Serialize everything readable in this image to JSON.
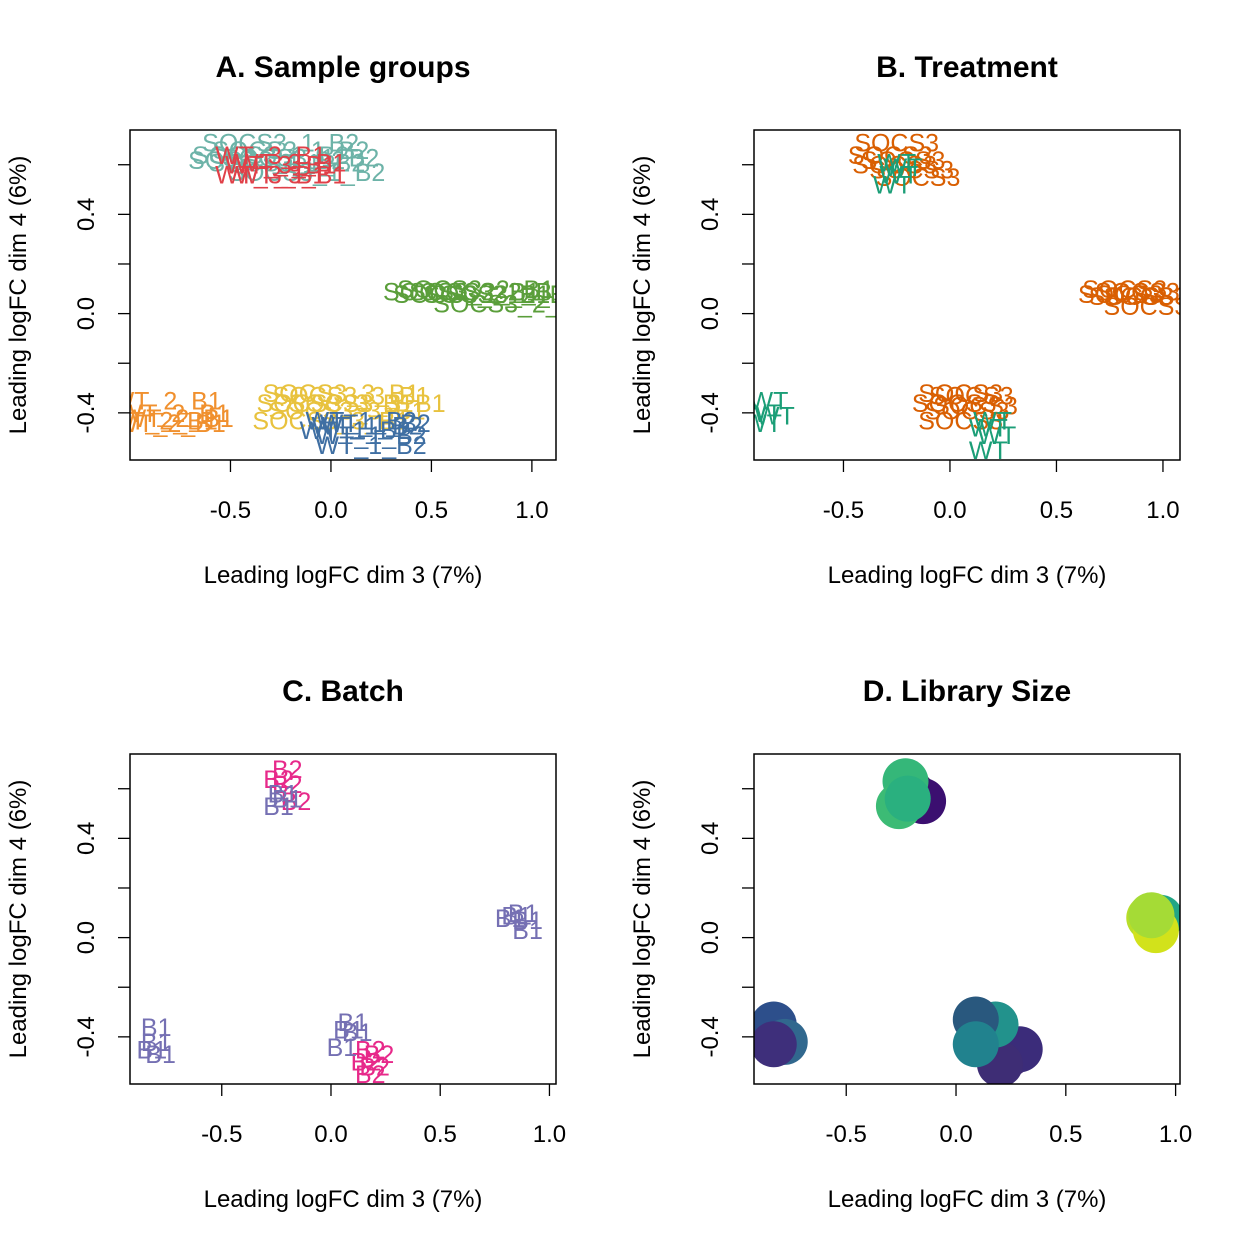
{
  "chart_data": [
    {
      "type": "scatter",
      "title": "A. Sample groups",
      "xlabel": "Leading logFC dim 3 (7%)",
      "ylabel": "Leading logFC dim 4 (6%)",
      "xlim": [
        -1.0,
        1.12
      ],
      "ylim": [
        -0.59,
        0.74
      ],
      "xticks": [
        "-0.5",
        "0.0",
        "0.5",
        "1.0"
      ],
      "yticks": [
        "-0.4",
        "0.0",
        "0.4"
      ],
      "xtick_values": [
        -0.5,
        0.0,
        0.5,
        1.0
      ],
      "ytick_values": [
        -0.4,
        0.0,
        0.4
      ],
      "yminor": [
        -0.2,
        0.2,
        0.6
      ],
      "marker": "text",
      "series": [
        {
          "color": "#6db3a8",
          "points": [
            {
              "x": -0.25,
              "y": 0.69,
              "label": "SOCS3_1_B2"
            },
            {
              "x": -0.3,
              "y": 0.64,
              "label": "SOCS3_1_B2"
            },
            {
              "x": -0.2,
              "y": 0.66,
              "label": "SOCS3_1_B2"
            },
            {
              "x": -0.32,
              "y": 0.62,
              "label": "SOCS3_1_B2"
            },
            {
              "x": -0.15,
              "y": 0.63,
              "label": "SOCS3_1_B2"
            },
            {
              "x": -0.22,
              "y": 0.61,
              "label": "SOCS3_1_B2"
            },
            {
              "x": -0.12,
              "y": 0.57,
              "label": "SOCS3_1_B2"
            }
          ]
        },
        {
          "color": "#e04048",
          "points": [
            {
              "x": -0.3,
              "y": 0.64,
              "label": "WT_3_B1"
            },
            {
              "x": -0.2,
              "y": 0.61,
              "label": "WT_3_B1"
            },
            {
              "x": -0.25,
              "y": 0.6,
              "label": "WT_3_B1"
            },
            {
              "x": -0.3,
              "y": 0.56,
              "label": "WT_3_B1"
            },
            {
              "x": -0.2,
              "y": 0.56,
              "label": "WT_3_B1"
            }
          ]
        },
        {
          "color": "#5a9e3a",
          "points": [
            {
              "x": 0.65,
              "y": 0.09,
              "label": "SOCS3_2_B1"
            },
            {
              "x": 0.72,
              "y": 0.1,
              "label": "SOCS3_2_B1"
            },
            {
              "x": 0.78,
              "y": 0.09,
              "label": "SOCS3_2_B1"
            },
            {
              "x": 0.7,
              "y": 0.08,
              "label": "SOCS3_2_B1"
            },
            {
              "x": 0.85,
              "y": 0.08,
              "label": "SOCS3_2_B1"
            },
            {
              "x": 0.9,
              "y": 0.04,
              "label": "SOCS3_2_B1"
            }
          ]
        },
        {
          "color": "#e8c23e",
          "points": [
            {
              "x": 0.05,
              "y": -0.32,
              "label": "SOCS3_3_B1"
            },
            {
              "x": 0.1,
              "y": -0.33,
              "label": "SOCS3_3_B1"
            },
            {
              "x": 0.02,
              "y": -0.36,
              "label": "SOCS3_3_B1"
            },
            {
              "x": 0.18,
              "y": -0.36,
              "label": "SOCS3_3_B1"
            },
            {
              "x": 0.08,
              "y": -0.39,
              "label": "SOCS3_3_B1"
            },
            {
              "x": 0.0,
              "y": -0.43,
              "label": "SOCS3_3_B1"
            }
          ]
        },
        {
          "color": "#f0902e",
          "points": [
            {
              "x": -0.82,
              "y": -0.35,
              "label": "WT_2_B1"
            },
            {
              "x": -0.78,
              "y": -0.4,
              "label": "WT_2_B1"
            },
            {
              "x": -0.84,
              "y": -0.43,
              "label": "WT_2_B1"
            },
            {
              "x": -0.76,
              "y": -0.42,
              "label": "WT_2_B1"
            },
            {
              "x": -0.8,
              "y": -0.44,
              "label": "WT_2_B1"
            }
          ]
        },
        {
          "color": "#3f6fa3",
          "points": [
            {
              "x": 0.15,
              "y": -0.43,
              "label": "WT_1_B2"
            },
            {
              "x": 0.22,
              "y": -0.44,
              "label": "WT_1_B2"
            },
            {
              "x": 0.18,
              "y": -0.45,
              "label": "WT_1_B2"
            },
            {
              "x": 0.2,
              "y": -0.49,
              "label": "WT_1_B2"
            },
            {
              "x": 0.12,
              "y": -0.47,
              "label": "WT_1_B2"
            },
            {
              "x": 0.2,
              "y": -0.53,
              "label": "WT_1_B2"
            }
          ]
        }
      ]
    },
    {
      "type": "scatter",
      "title": "B. Treatment",
      "xlabel": "Leading logFC dim 3 (7%)",
      "ylabel": "Leading logFC dim 4 (6%)",
      "xlim": [
        -0.92,
        1.08
      ],
      "ylim": [
        -0.59,
        0.74
      ],
      "xticks": [
        "-0.5",
        "0.0",
        "0.5",
        "1.0"
      ],
      "yticks": [
        "-0.4",
        "0.0",
        "0.4"
      ],
      "xtick_values": [
        -0.5,
        0.0,
        0.5,
        1.0
      ],
      "ytick_values": [
        -0.4,
        0.0,
        0.4
      ],
      "yminor": [
        -0.2,
        0.2,
        0.6
      ],
      "marker": "text",
      "series": [
        {
          "color": "#d95f02",
          "points": [
            {
              "x": -0.25,
              "y": 0.69,
              "label": "SOCS3"
            },
            {
              "x": -0.28,
              "y": 0.64,
              "label": "SOCS3"
            },
            {
              "x": -0.22,
              "y": 0.62,
              "label": "SOCS3"
            },
            {
              "x": -0.26,
              "y": 0.6,
              "label": "SOCS3"
            },
            {
              "x": -0.18,
              "y": 0.58,
              "label": "SOCS3"
            },
            {
              "x": -0.15,
              "y": 0.55,
              "label": "SOCS3"
            },
            {
              "x": 0.82,
              "y": 0.1,
              "label": "SOCS3"
            },
            {
              "x": 0.88,
              "y": 0.09,
              "label": "SOCS3"
            },
            {
              "x": 0.8,
              "y": 0.08,
              "label": "SOCS3"
            },
            {
              "x": 0.92,
              "y": 0.07,
              "label": "SOCS3"
            },
            {
              "x": 0.85,
              "y": 0.07,
              "label": "SOCS3"
            },
            {
              "x": 0.92,
              "y": 0.03,
              "label": "SOCS3"
            },
            {
              "x": 0.05,
              "y": -0.32,
              "label": "SOCS3"
            },
            {
              "x": 0.1,
              "y": -0.33,
              "label": "SOCS3"
            },
            {
              "x": 0.02,
              "y": -0.36,
              "label": "SOCS3"
            },
            {
              "x": 0.12,
              "y": -0.37,
              "label": "SOCS3"
            },
            {
              "x": 0.08,
              "y": -0.39,
              "label": "SOCS3"
            },
            {
              "x": 0.05,
              "y": -0.43,
              "label": "SOCS3"
            }
          ]
        },
        {
          "color": "#1b9e77",
          "points": [
            {
              "x": -0.25,
              "y": 0.61,
              "label": "WT"
            },
            {
              "x": -0.22,
              "y": 0.59,
              "label": "WT"
            },
            {
              "x": -0.24,
              "y": 0.56,
              "label": "WT"
            },
            {
              "x": -0.27,
              "y": 0.52,
              "label": "WT"
            },
            {
              "x": -0.85,
              "y": -0.35,
              "label": "WT"
            },
            {
              "x": -0.88,
              "y": -0.4,
              "label": "WT"
            },
            {
              "x": -0.82,
              "y": -0.41,
              "label": "WT"
            },
            {
              "x": -0.88,
              "y": -0.44,
              "label": "WT"
            },
            {
              "x": 0.2,
              "y": -0.43,
              "label": "WT"
            },
            {
              "x": 0.18,
              "y": -0.46,
              "label": "WT"
            },
            {
              "x": 0.22,
              "y": -0.49,
              "label": "WT"
            },
            {
              "x": 0.18,
              "y": -0.55,
              "label": "WT"
            }
          ]
        }
      ]
    },
    {
      "type": "scatter",
      "title": "C. Batch",
      "xlabel": "Leading logFC dim 3 (7%)",
      "ylabel": "Leading logFC dim 4 (6%)",
      "xlim": [
        -0.92,
        1.03
      ],
      "ylim": [
        -0.59,
        0.74
      ],
      "xticks": [
        "-0.5",
        "0.0",
        "0.5",
        "1.0"
      ],
      "yticks": [
        "-0.4",
        "0.0",
        "0.4"
      ],
      "xtick_values": [
        -0.5,
        0.0,
        0.5,
        1.0
      ],
      "ytick_values": [
        -0.4,
        0.0,
        0.4
      ],
      "yminor": [
        -0.2,
        0.2,
        0.6
      ],
      "marker": "text",
      "series": [
        {
          "color": "#e7298a",
          "points": [
            {
              "x": -0.2,
              "y": 0.68,
              "label": "B2"
            },
            {
              "x": -0.24,
              "y": 0.64,
              "label": "B2"
            },
            {
              "x": -0.2,
              "y": 0.62,
              "label": "B2"
            },
            {
              "x": -0.16,
              "y": 0.55,
              "label": "B2"
            },
            {
              "x": 0.18,
              "y": -0.45,
              "label": "B2"
            },
            {
              "x": 0.22,
              "y": -0.47,
              "label": "B2"
            },
            {
              "x": 0.16,
              "y": -0.5,
              "label": "B2"
            },
            {
              "x": 0.2,
              "y": -0.52,
              "label": "B2"
            },
            {
              "x": 0.18,
              "y": -0.55,
              "label": "B2"
            }
          ]
        },
        {
          "color": "#7570b3",
          "points": [
            {
              "x": -0.22,
              "y": 0.58,
              "label": "B1"
            },
            {
              "x": -0.2,
              "y": 0.56,
              "label": "B1"
            },
            {
              "x": -0.24,
              "y": 0.53,
              "label": "B1"
            },
            {
              "x": 0.88,
              "y": 0.1,
              "label": "B1"
            },
            {
              "x": 0.85,
              "y": 0.09,
              "label": "B1"
            },
            {
              "x": 0.82,
              "y": 0.08,
              "label": "B1"
            },
            {
              "x": 0.9,
              "y": 0.07,
              "label": "B1"
            },
            {
              "x": 0.9,
              "y": 0.03,
              "label": "B1"
            },
            {
              "x": 0.1,
              "y": -0.34,
              "label": "B1"
            },
            {
              "x": 0.08,
              "y": -0.37,
              "label": "B1"
            },
            {
              "x": 0.12,
              "y": -0.38,
              "label": "B1"
            },
            {
              "x": 0.05,
              "y": -0.44,
              "label": "B1"
            },
            {
              "x": -0.8,
              "y": -0.36,
              "label": "B1"
            },
            {
              "x": -0.8,
              "y": -0.42,
              "label": "B1"
            },
            {
              "x": -0.82,
              "y": -0.45,
              "label": "B1"
            },
            {
              "x": -0.78,
              "y": -0.47,
              "label": "B1"
            }
          ]
        }
      ]
    },
    {
      "type": "scatter",
      "title": "D. Library Size",
      "xlabel": "Leading logFC dim 3 (7%)",
      "ylabel": "Leading logFC dim 4 (6%)",
      "xlim": [
        -0.92,
        1.02
      ],
      "ylim": [
        -0.59,
        0.74
      ],
      "xticks": [
        "-0.5",
        "0.0",
        "0.5",
        "1.0"
      ],
      "yticks": [
        "-0.4",
        "0.0",
        "0.4"
      ],
      "xtick_values": [
        -0.5,
        0.0,
        0.5,
        1.0
      ],
      "ytick_values": [
        -0.4,
        0.0,
        0.4
      ],
      "yminor": [
        -0.2,
        0.2,
        0.6
      ],
      "marker": "circle",
      "points": [
        {
          "x": -0.2,
          "y": 0.58,
          "color": "#440154"
        },
        {
          "x": -0.15,
          "y": 0.55,
          "color": "#3b0f70"
        },
        {
          "x": -0.23,
          "y": 0.63,
          "color": "#35b779"
        },
        {
          "x": -0.26,
          "y": 0.53,
          "color": "#3cbb75"
        },
        {
          "x": -0.22,
          "y": 0.56,
          "color": "#2ab07f"
        },
        {
          "x": 0.93,
          "y": 0.08,
          "color": "#21a685"
        },
        {
          "x": 0.88,
          "y": 0.08,
          "color": "#b8de29"
        },
        {
          "x": 0.91,
          "y": 0.03,
          "color": "#d2e21b"
        },
        {
          "x": 0.89,
          "y": 0.09,
          "color": "#a5db36"
        },
        {
          "x": -0.83,
          "y": -0.35,
          "color": "#2d4f8b"
        },
        {
          "x": -0.78,
          "y": -0.42,
          "color": "#31688e"
        },
        {
          "x": -0.83,
          "y": -0.43,
          "color": "#3e2f7b"
        },
        {
          "x": 0.24,
          "y": -0.47,
          "color": "#482677"
        },
        {
          "x": 0.29,
          "y": -0.45,
          "color": "#3b2c7a"
        },
        {
          "x": 0.2,
          "y": -0.51,
          "color": "#3e2d75"
        },
        {
          "x": 0.18,
          "y": -0.35,
          "color": "#22928c"
        },
        {
          "x": 0.09,
          "y": -0.33,
          "color": "#29587e"
        },
        {
          "x": 0.09,
          "y": -0.43,
          "color": "#21828e"
        }
      ]
    }
  ]
}
